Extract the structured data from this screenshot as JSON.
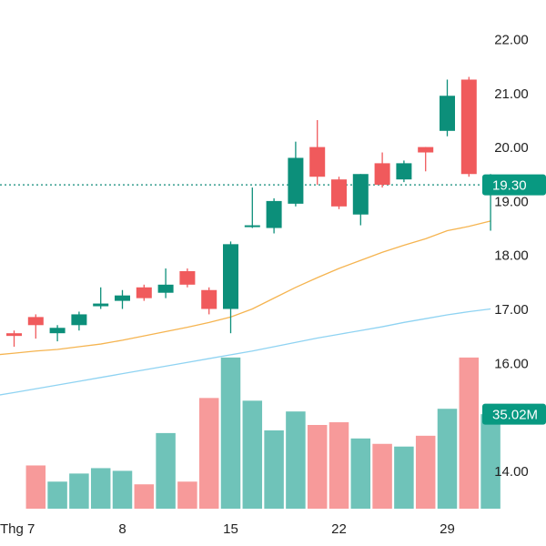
{
  "colors": {
    "up": "#089981",
    "down": "#f23645",
    "up_candle": "#0c8f7a",
    "down_candle": "#f05a5c",
    "vol_up": "#6fc3b9",
    "vol_down": "#f79a9a",
    "ma_orange": "#f5b450",
    "ma_blue": "#8fd3f2",
    "axis_text": "#222222",
    "price_line": "#0f8a78"
  },
  "chart_data": {
    "type": "candlestick",
    "x_labels": [
      {
        "label": "Thg 7",
        "index": 0
      },
      {
        "label": "8",
        "index": 5
      },
      {
        "label": "15",
        "index": 10
      },
      {
        "label": "22",
        "index": 15
      },
      {
        "label": "29",
        "index": 20
      }
    ],
    "y_ticks": [
      "22.00",
      "21.00",
      "20.00",
      "19.00",
      "18.00",
      "17.00",
      "16.00",
      "14.00"
    ],
    "y_range": [
      13.35,
      22.45
    ],
    "candles": [
      {
        "o": 16.55,
        "h": 16.6,
        "l": 16.3,
        "c": 16.5,
        "v": 13.2
      },
      {
        "o": 16.85,
        "h": 16.9,
        "l": 16.45,
        "c": 16.7,
        "v": 14.1
      },
      {
        "o": 16.55,
        "h": 16.7,
        "l": 16.4,
        "c": 16.65,
        "v": 13.8
      },
      {
        "o": 16.7,
        "h": 16.95,
        "l": 16.6,
        "c": 16.9,
        "v": 13.95
      },
      {
        "o": 17.05,
        "h": 17.4,
        "l": 17.0,
        "c": 17.1,
        "v": 14.05
      },
      {
        "o": 17.15,
        "h": 17.35,
        "l": 17.0,
        "c": 17.25,
        "v": 14.0
      },
      {
        "o": 17.4,
        "h": 17.45,
        "l": 17.15,
        "c": 17.2,
        "v": 13.75
      },
      {
        "o": 17.3,
        "h": 17.75,
        "l": 17.2,
        "c": 17.45,
        "v": 14.7
      },
      {
        "o": 17.7,
        "h": 17.75,
        "l": 17.4,
        "c": 17.45,
        "v": 13.8
      },
      {
        "o": 17.35,
        "h": 17.4,
        "l": 16.9,
        "c": 17.0,
        "v": 15.35
      },
      {
        "o": 17.0,
        "h": 18.25,
        "l": 16.55,
        "c": 18.2,
        "v": 16.1
      },
      {
        "o": 18.55,
        "h": 19.25,
        "l": 18.5,
        "c": 18.55,
        "v": 15.3
      },
      {
        "o": 18.5,
        "h": 19.05,
        "l": 18.4,
        "c": 19.0,
        "v": 14.75
      },
      {
        "o": 18.95,
        "h": 20.1,
        "l": 18.9,
        "c": 19.8,
        "v": 15.1
      },
      {
        "o": 20.0,
        "h": 20.5,
        "l": 19.3,
        "c": 19.45,
        "v": 14.85
      },
      {
        "o": 19.4,
        "h": 19.45,
        "l": 18.85,
        "c": 18.9,
        "v": 14.9
      },
      {
        "o": 18.75,
        "h": 19.5,
        "l": 18.55,
        "c": 19.5,
        "v": 14.6
      },
      {
        "o": 19.7,
        "h": 19.9,
        "l": 19.25,
        "c": 19.3,
        "v": 14.5
      },
      {
        "o": 19.4,
        "h": 19.75,
        "l": 19.35,
        "c": 19.7,
        "v": 14.45
      },
      {
        "o": 20.0,
        "h": 20.0,
        "l": 19.55,
        "c": 19.9,
        "v": 14.65
      },
      {
        "o": 20.3,
        "h": 21.25,
        "l": 20.2,
        "c": 20.95,
        "v": 15.15
      },
      {
        "o": 21.25,
        "h": 21.3,
        "l": 19.45,
        "c": 19.5,
        "v": 16.1
      },
      {
        "o": 19.3,
        "h": 19.5,
        "l": 18.45,
        "c": 19.3,
        "v": 15.05
      }
    ],
    "ma_orange": [
      16.18,
      16.22,
      16.25,
      16.3,
      16.35,
      16.42,
      16.5,
      16.58,
      16.66,
      16.75,
      16.85,
      17.0,
      17.2,
      17.4,
      17.58,
      17.75,
      17.9,
      18.05,
      18.18,
      18.3,
      18.45,
      18.53,
      18.63
    ],
    "ma_blue": [
      15.45,
      15.52,
      15.59,
      15.66,
      15.73,
      15.8,
      15.87,
      15.94,
      16.01,
      16.08,
      16.15,
      16.22,
      16.3,
      16.38,
      16.46,
      16.53,
      16.6,
      16.67,
      16.75,
      16.82,
      16.89,
      16.95,
      17.0
    ],
    "last_price_label": "19.30",
    "last_price": 19.3,
    "volume_label": "35.02M",
    "volume_level": 15.05
  }
}
